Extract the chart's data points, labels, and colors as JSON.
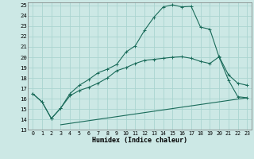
{
  "xlabel": "Humidex (Indice chaleur)",
  "bg_color": "#cce8e5",
  "grid_color": "#aad4d0",
  "line_color": "#1a6b5a",
  "xlim": [
    -0.5,
    23.5
  ],
  "ylim": [
    13,
    25.3
  ],
  "xticks": [
    0,
    1,
    2,
    3,
    4,
    5,
    6,
    7,
    8,
    9,
    10,
    11,
    12,
    13,
    14,
    15,
    16,
    17,
    18,
    19,
    20,
    21,
    22,
    23
  ],
  "yticks": [
    13,
    14,
    15,
    16,
    17,
    18,
    19,
    20,
    21,
    22,
    23,
    24,
    25
  ],
  "line1_x": [
    0,
    1,
    2,
    3,
    4,
    5,
    6,
    7,
    8,
    9,
    10,
    11,
    12,
    13,
    14,
    15,
    16,
    17,
    18,
    19,
    20,
    21,
    22,
    23
  ],
  "line1_y": [
    16.5,
    15.7,
    14.1,
    15.1,
    16.5,
    17.3,
    17.85,
    18.5,
    18.85,
    19.3,
    20.5,
    21.1,
    22.6,
    23.85,
    24.85,
    25.05,
    24.85,
    24.9,
    22.9,
    22.7,
    20.0,
    17.8,
    16.2,
    16.1
  ],
  "line2_x": [
    0,
    1,
    2,
    3,
    4,
    5,
    6,
    7,
    8,
    9,
    10,
    11,
    12,
    13,
    14,
    15,
    16,
    17,
    18,
    19,
    20,
    21,
    22,
    23
  ],
  "line2_y": [
    16.5,
    15.7,
    14.1,
    15.1,
    16.3,
    16.8,
    17.1,
    17.5,
    18.0,
    18.7,
    19.0,
    19.4,
    19.7,
    19.8,
    19.9,
    20.0,
    20.05,
    19.9,
    19.6,
    19.4,
    20.05,
    18.3,
    17.5,
    17.3
  ],
  "line3_x": [
    3,
    23
  ],
  "line3_y": [
    13.5,
    16.1
  ]
}
